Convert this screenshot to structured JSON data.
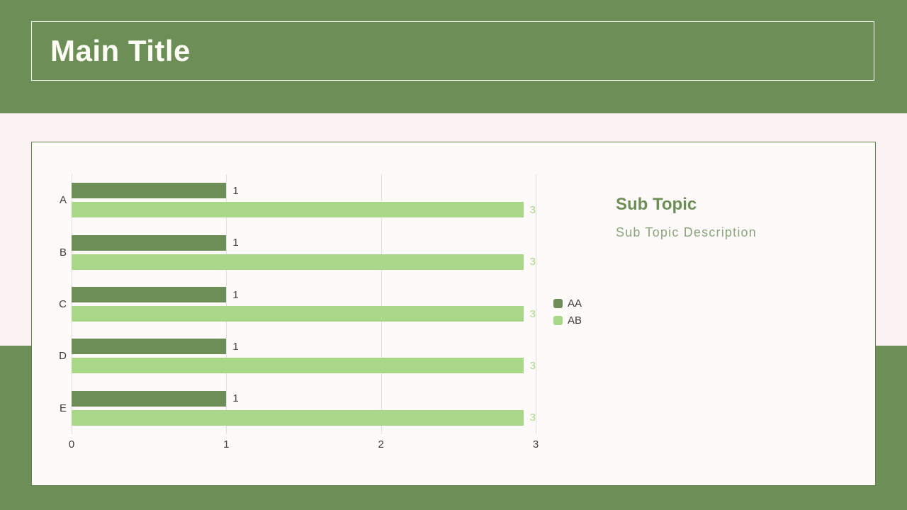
{
  "slide": {
    "main_title": "Main Title",
    "sub_topic": {
      "title": "Sub Topic",
      "description": "Sub Topic Description"
    }
  },
  "colors": {
    "band_green": "#6d8f57",
    "page_bg": "#fbf2f4",
    "card_bg": "#fdfaf9",
    "card_border": "#5e7f49",
    "title_text": "#fdfcf5",
    "gridline": "#dedede",
    "axis_text": "#3a3a3a",
    "subtopic_title": "#6d8f57",
    "subtopic_desc": "#8ca57c"
  },
  "chart_data": {
    "type": "bar",
    "orientation": "horizontal",
    "title": "",
    "categories": [
      "A",
      "B",
      "C",
      "D",
      "E"
    ],
    "series": [
      {
        "name": "AA",
        "color": "#6d8f57",
        "label_color": "#4a4a4a",
        "values": [
          1,
          1,
          1,
          1,
          1
        ]
      },
      {
        "name": "AB",
        "color": "#a9d788",
        "label_color": "#a9d788",
        "values": [
          3,
          3,
          3,
          3,
          3
        ]
      }
    ],
    "x_ticks": [
      "0",
      "1",
      "2",
      "3"
    ],
    "xlim": [
      0,
      3
    ],
    "grid": true,
    "value_labels": true,
    "legend_position": "right-middle"
  }
}
